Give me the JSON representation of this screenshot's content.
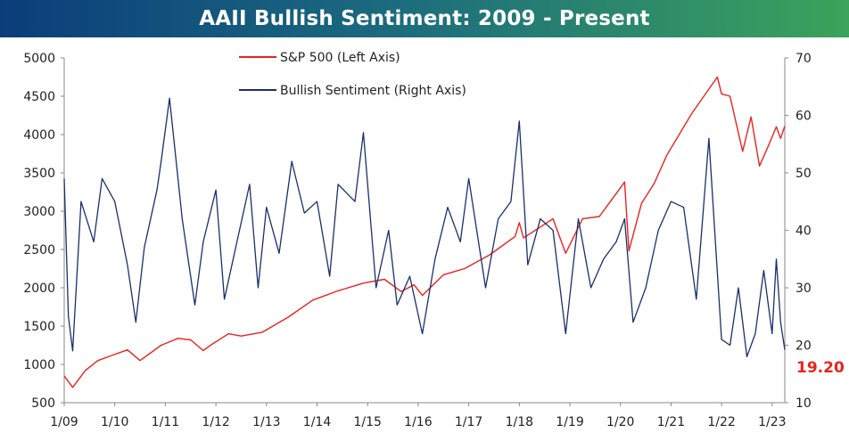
{
  "title": "AAII Bullish Sentiment: 2009 - Present",
  "colors": {
    "sp500": "#e8231f",
    "sentiment": "#1a2f6b",
    "title_start": "#0b3d7a",
    "title_end": "#3ba35a",
    "callout": "#e8231f"
  },
  "chart_data": {
    "type": "line",
    "title": "AAII Bullish Sentiment: 2009 - Present",
    "x_range": [
      "2009-01",
      "2023-04"
    ],
    "x_tick_labels": [
      "1/09",
      "1/10",
      "1/11",
      "1/12",
      "1/13",
      "1/14",
      "1/15",
      "1/16",
      "1/17",
      "1/18",
      "1/19",
      "1/20",
      "1/21",
      "1/22",
      "1/23"
    ],
    "y_left": {
      "range": [
        500,
        5000
      ],
      "ticks": [
        "500",
        "1000",
        "1500",
        "2000",
        "2500",
        "3000",
        "3500",
        "4000",
        "4500",
        "5000"
      ]
    },
    "y_right": {
      "range": [
        10,
        70
      ],
      "ticks": [
        "10",
        "20",
        "30",
        "40",
        "50",
        "60",
        "70"
      ]
    },
    "grid": false,
    "legend_position": "top-center",
    "callout_value": "19.20",
    "series": [
      {
        "name": "S&P 500 (Left Axis)",
        "axis": "left",
        "x": [
          "2009-01",
          "2009-03",
          "2009-06",
          "2009-09",
          "2009-12",
          "2010-04",
          "2010-07",
          "2010-12",
          "2011-04",
          "2011-07",
          "2011-10",
          "2011-12",
          "2012-04",
          "2012-07",
          "2012-12",
          "2013-06",
          "2013-12",
          "2014-06",
          "2014-12",
          "2015-05",
          "2015-09",
          "2015-12",
          "2016-02",
          "2016-07",
          "2016-12",
          "2017-06",
          "2017-12",
          "2018-01",
          "2018-02",
          "2018-09",
          "2018-12",
          "2019-04",
          "2019-08",
          "2019-12",
          "2020-02",
          "2020-03",
          "2020-06",
          "2020-09",
          "2020-12",
          "2021-06",
          "2021-12",
          "2022-01",
          "2022-03",
          "2022-06",
          "2022-08",
          "2022-10",
          "2022-12",
          "2023-02",
          "2023-03",
          "2023-04"
        ],
        "values": [
          850,
          700,
          920,
          1050,
          1110,
          1190,
          1050,
          1250,
          1340,
          1320,
          1180,
          1260,
          1400,
          1370,
          1420,
          1610,
          1840,
          1960,
          2060,
          2110,
          1950,
          2040,
          1900,
          2170,
          2250,
          2430,
          2670,
          2850,
          2650,
          2900,
          2450,
          2900,
          2930,
          3230,
          3380,
          2480,
          3100,
          3360,
          3730,
          4280,
          4750,
          4530,
          4500,
          3780,
          4230,
          3590,
          3840,
          4100,
          3950,
          4110
        ]
      },
      {
        "name": "Bullish Sentiment (Right Axis)",
        "axis": "right",
        "x": [
          "2009-01",
          "2009-02",
          "2009-03",
          "2009-05",
          "2009-08",
          "2009-10",
          "2010-01",
          "2010-04",
          "2010-06",
          "2010-08",
          "2010-11",
          "2010-12",
          "2011-02",
          "2011-05",
          "2011-08",
          "2011-10",
          "2012-01",
          "2012-03",
          "2012-06",
          "2012-09",
          "2012-11",
          "2013-01",
          "2013-04",
          "2013-07",
          "2013-10",
          "2014-01",
          "2014-04",
          "2014-06",
          "2014-10",
          "2014-12",
          "2015-03",
          "2015-06",
          "2015-08",
          "2015-11",
          "2016-02",
          "2016-05",
          "2016-08",
          "2016-11",
          "2017-01",
          "2017-05",
          "2017-08",
          "2017-11",
          "2018-01",
          "2018-03",
          "2018-06",
          "2018-09",
          "2018-12",
          "2019-03",
          "2019-06",
          "2019-09",
          "2019-12",
          "2020-02",
          "2020-04",
          "2020-07",
          "2020-10",
          "2021-01",
          "2021-04",
          "2021-07",
          "2021-10",
          "2022-01",
          "2022-03",
          "2022-05",
          "2022-07",
          "2022-09",
          "2022-11",
          "2023-01",
          "2023-02",
          "2023-03",
          "2023-04"
        ],
        "values": [
          49,
          25,
          19,
          45,
          38,
          49,
          45,
          34,
          24,
          37,
          47,
          52,
          63,
          42,
          27,
          38,
          47,
          28,
          38,
          48,
          30,
          44,
          36,
          52,
          43,
          45,
          32,
          48,
          45,
          57,
          30,
          40,
          27,
          32,
          22,
          35,
          44,
          38,
          49,
          30,
          42,
          45,
          59,
          34,
          42,
          40,
          22,
          42,
          30,
          35,
          38,
          42,
          24,
          30,
          40,
          45,
          44,
          28,
          56,
          21,
          20,
          30,
          18,
          22,
          33,
          22,
          35,
          24,
          19.2
        ]
      }
    ]
  }
}
